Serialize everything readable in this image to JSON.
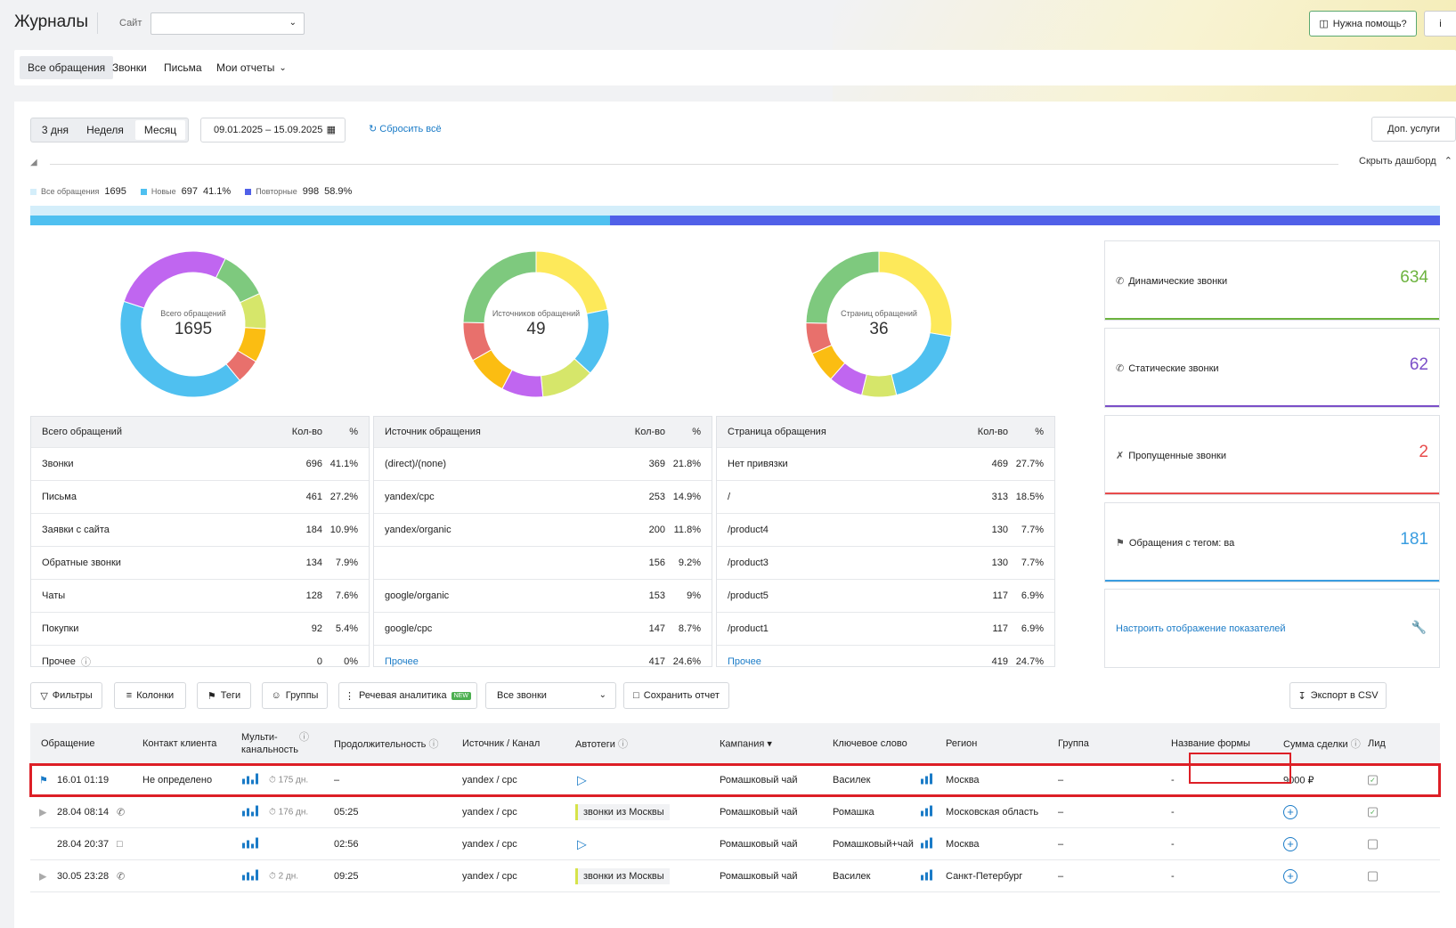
{
  "header": {
    "title": "Журналы",
    "site_label": "Сайт",
    "site_value": "",
    "help_label": "Нужна помощь?",
    "info_label": "i"
  },
  "tabs": [
    {
      "label": "Все обращения"
    },
    {
      "label": "Звонки"
    },
    {
      "label": "Письма"
    },
    {
      "label": "Мои отчеты"
    }
  ],
  "period": {
    "options": [
      "3 дня",
      "Неделя",
      "Месяц"
    ],
    "selected": "Месяц",
    "date_range": "09.01.2025 – 15.09.2025",
    "reset_label": "Сбросить всё",
    "extra_services_label": "Доп. услуги",
    "hide_dashboard_label": "Скрыть дашборд"
  },
  "legend": {
    "all_label": "Все обращения",
    "all_value": "1695",
    "new_label": "Новые",
    "new_value": "697",
    "new_pct": "41.1%",
    "repeat_label": "Повторные",
    "repeat_value": "998",
    "repeat_pct": "58.9%",
    "new_fraction": 0.411,
    "colors": {
      "all": "#d4eefa",
      "new": "#4fc0f0",
      "repeat": "#5060e8"
    }
  },
  "chart_data": [
    {
      "type": "pie",
      "title": "Всего обращений",
      "total": "1695",
      "categories": [
        "Звонки",
        "Письма",
        "Заявки с сайта",
        "Обратные звонки",
        "Чаты",
        "Покупки"
      ],
      "values": [
        696,
        461,
        184,
        134,
        128,
        92
      ],
      "colors": [
        "#4fc0f0",
        "#c066f0",
        "#7ec97e",
        "#d6e66a",
        "#fbbd12",
        "#e8706c"
      ]
    },
    {
      "type": "pie",
      "title": "Источников обращений",
      "total": "49",
      "categories": [
        "(direct)/(none)",
        "yandex/cpc",
        "yandex/organic",
        "",
        "google/organic",
        "google/cpc",
        "Прочее"
      ],
      "values": [
        369,
        253,
        200,
        156,
        153,
        147,
        417
      ],
      "colors": [
        "#fde95a",
        "#4fc0f0",
        "#d6e66a",
        "#c066f0",
        "#fbbd12",
        "#e8706c",
        "#7ec97e"
      ]
    },
    {
      "type": "pie",
      "title": "Страниц обращений",
      "total": "36",
      "categories": [
        "Нет привязки",
        "/",
        "/product4",
        "/product3",
        "/product5",
        "/product1",
        "Прочее"
      ],
      "values": [
        469,
        313,
        130,
        130,
        117,
        117,
        419
      ],
      "colors": [
        "#fde95a",
        "#4fc0f0",
        "#d6e66a",
        "#c066f0",
        "#fbbd12",
        "#e8706c",
        "#7ec97e"
      ]
    }
  ],
  "tables": [
    {
      "head": [
        "Всего обращений",
        "Кол-во",
        "%"
      ],
      "rows": [
        [
          "Звонки",
          "696",
          "41.1%"
        ],
        [
          "Письма",
          "461",
          "27.2%"
        ],
        [
          "Заявки с сайта",
          "184",
          "10.9%"
        ],
        [
          "Обратные звонки",
          "134",
          "7.9%"
        ],
        [
          "Чаты",
          "128",
          "7.6%"
        ],
        [
          "Покупки",
          "92",
          "5.4%"
        ],
        [
          "Прочее",
          "0",
          "0%"
        ]
      ]
    },
    {
      "head": [
        "Источник обращения",
        "Кол-во",
        "%"
      ],
      "rows": [
        [
          "(direct)/(none)",
          "369",
          "21.8%"
        ],
        [
          "yandex/cpc",
          "253",
          "14.9%"
        ],
        [
          "yandex/organic",
          "200",
          "11.8%"
        ],
        [
          "",
          "156",
          "9.2%"
        ],
        [
          "google/organic",
          "153",
          "9%"
        ],
        [
          "google/cpc",
          "147",
          "8.7%"
        ],
        [
          "Прочее",
          "417",
          "24.6%"
        ]
      ]
    },
    {
      "head": [
        "Страница обращения",
        "Кол-во",
        "%"
      ],
      "rows": [
        [
          "Нет привязки",
          "469",
          "27.7%"
        ],
        [
          "/",
          "313",
          "18.5%"
        ],
        [
          "/product4",
          "130",
          "7.7%"
        ],
        [
          "/product3",
          "130",
          "7.7%"
        ],
        [
          "/product5",
          "117",
          "6.9%"
        ],
        [
          "/product1",
          "117",
          "6.9%"
        ],
        [
          "Прочее",
          "419",
          "24.7%"
        ]
      ]
    }
  ],
  "cards": [
    {
      "label": "Динамические звонки",
      "value": "634",
      "color": "#6db33f"
    },
    {
      "label": "Статические звонки",
      "value": "62",
      "color": "#7b4fc8"
    },
    {
      "label": "Пропущенные звонки",
      "value": "2",
      "color": "#e84c4c"
    },
    {
      "label": "Обращения с тегом: ва",
      "value": "181",
      "color": "#3a9de0"
    }
  ],
  "configure_label": "Настроить отображение показателей",
  "filters": {
    "filters_label": "Фильтры",
    "columns_label": "Колонки",
    "tags_label": "Теги",
    "groups_label": "Группы",
    "speech_label": "Речевая аналитика",
    "new_badge": "NEW",
    "all_calls_label": "Все звонки",
    "save_label": "Сохранить отчет",
    "export_label": "Экспорт в CSV"
  },
  "grid": {
    "columns": [
      "Обращение",
      "Контакт клиента",
      "Мульти-",
      "канальность",
      "Продолжительность",
      "Источник / Канал",
      "Автотеги",
      "Кампания",
      "Ключевое слово",
      "Регион",
      "Группа",
      "Название формы",
      "Сумма сделки",
      "Лид"
    ],
    "rows": [
      {
        "date": "16.01 01:19",
        "contact": "Не определено",
        "multi": "175 дн.",
        "duration": "–",
        "source": "yandex / cpc",
        "tag": "",
        "campaign": "Ромашковый чай",
        "keyword": "Василек",
        "region": "Москва",
        "group": "–",
        "form": "-",
        "sum": "9000 ₽"
      },
      {
        "date": "28.04 08:14",
        "contact": "",
        "multi": "176 дн.",
        "duration": "05:25",
        "source": "yandex / cpc",
        "tag": "звонки из Москвы",
        "campaign": "Ромашковый чай",
        "keyword": "Ромашка",
        "region": "Московская область",
        "group": "–",
        "form": "-",
        "sum": ""
      },
      {
        "date": "28.04 20:37",
        "contact": "",
        "multi": "",
        "duration": "02:56",
        "source": "yandex / cpc",
        "tag": "",
        "campaign": "Ромашковый чай",
        "keyword": "Ромашковый+чай",
        "region": "Москва",
        "group": "–",
        "form": "-",
        "sum": ""
      },
      {
        "date": "30.05 23:28",
        "contact": "",
        "multi": "2 дн.",
        "duration": "09:25",
        "source": "yandex / cpc",
        "tag": "звонки из Москвы",
        "campaign": "Ромашковый чай",
        "keyword": "Василек",
        "region": "Санкт-Петербург",
        "group": "–",
        "form": "-",
        "sum": ""
      }
    ]
  }
}
